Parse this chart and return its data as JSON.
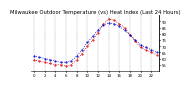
{
  "title": "Milwaukee Outdoor Temperature (vs) Heat Index (Last 24 Hours)",
  "line1_label": "Outdoor Temp",
  "line2_label": "Heat Index",
  "line1_color": "#0000cc",
  "line2_color": "#dd0000",
  "background_color": "#ffffff",
  "grid_color": "#888888",
  "hours": [
    0,
    1,
    2,
    3,
    4,
    5,
    6,
    7,
    8,
    9,
    10,
    11,
    12,
    13,
    14,
    15,
    16,
    17,
    18,
    19,
    20,
    21,
    22,
    23
  ],
  "temp": [
    62,
    61,
    60,
    59,
    58,
    57,
    57,
    58,
    62,
    67,
    73,
    78,
    83,
    87,
    89,
    88,
    86,
    83,
    79,
    75,
    71,
    69,
    67,
    65
  ],
  "heat_index": [
    59,
    58,
    57,
    56,
    55,
    55,
    54,
    55,
    59,
    64,
    70,
    75,
    81,
    88,
    92,
    91,
    88,
    85,
    79,
    74,
    69,
    67,
    65,
    63
  ],
  "ylim": [
    50,
    95
  ],
  "ytick_vals": [
    55,
    60,
    65,
    70,
    75,
    80,
    85,
    90
  ],
  "ytick_labels": [
    "55",
    "60",
    "65",
    "70",
    "75",
    "80",
    "85",
    "90"
  ],
  "xtick_vals": [
    0,
    2,
    4,
    6,
    8,
    10,
    12,
    14,
    16,
    18,
    20,
    22
  ],
  "xtick_labels": [
    "0",
    "2",
    "4",
    "6",
    "8",
    "10",
    "12",
    "14",
    "16",
    "18",
    "20",
    "22"
  ],
  "title_fontsize": 3.8,
  "tick_fontsize": 2.8,
  "marker_size": 1.0,
  "line_width": 0.6
}
